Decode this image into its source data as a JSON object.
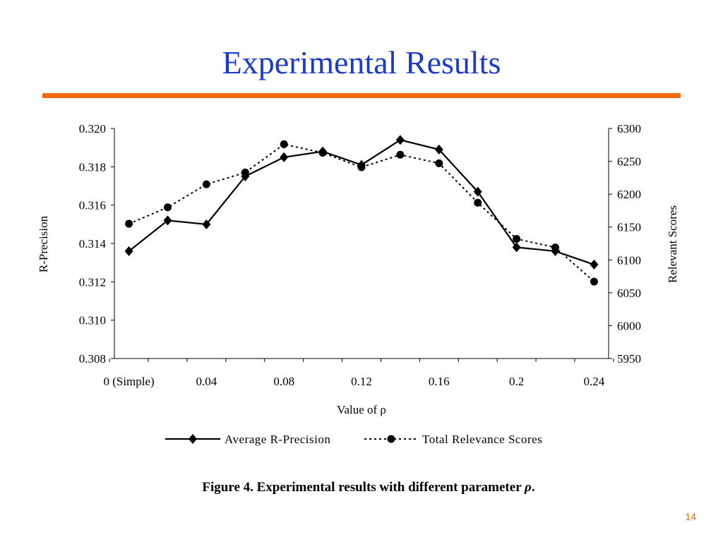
{
  "slide": {
    "title": "Experimental Results",
    "caption_prefix": "Figure 4. Experimental results with different parameter ",
    "caption_symbol": "ρ",
    "caption_suffix": ".",
    "page_number": "14",
    "accent_color": "#f26b0a",
    "title_color": "#1a3acc"
  },
  "chart_data": {
    "type": "line",
    "title": "",
    "xlabel": "Value of ρ",
    "ylabel": "R-Precision",
    "y2label": "Relevant Scores",
    "x": [
      0,
      0.02,
      0.04,
      0.06,
      0.08,
      0.1,
      0.12,
      0.14,
      0.16,
      0.18,
      0.2,
      0.22,
      0.24
    ],
    "xlim": [
      -0.0075,
      0.2475
    ],
    "x_ticks": [
      {
        "value": 0,
        "label": "0 (Simple)"
      },
      {
        "value": 0.04,
        "label": "0.04"
      },
      {
        "value": 0.08,
        "label": "0.08"
      },
      {
        "value": 0.12,
        "label": "0.12"
      },
      {
        "value": 0.16,
        "label": "0.16"
      },
      {
        "value": 0.2,
        "label": "0.2"
      },
      {
        "value": 0.24,
        "label": "0.24"
      }
    ],
    "ylim": [
      0.308,
      0.32
    ],
    "y_ticks": [
      "0.308",
      "0.310",
      "0.312",
      "0.314",
      "0.316",
      "0.318",
      "0.320"
    ],
    "y2lim": [
      5950,
      6300
    ],
    "y2_ticks": [
      "5950",
      "6000",
      "6050",
      "6100",
      "6150",
      "6200",
      "6250",
      "6300"
    ],
    "grid": false,
    "legend_position": "bottom",
    "series": [
      {
        "name": "Average R-Precision",
        "axis": "left",
        "style": "solid",
        "marker": "diamond",
        "values": [
          0.3136,
          0.3152,
          0.315,
          0.3175,
          0.3185,
          0.3188,
          0.3181,
          0.3194,
          0.3189,
          0.3167,
          0.3138,
          0.3136,
          0.3129
        ]
      },
      {
        "name": "Total Relevance Scores",
        "axis": "right",
        "style": "dotted",
        "marker": "circle",
        "values": [
          6155,
          6180,
          6215,
          6233,
          6276,
          6263,
          6241,
          6260,
          6247,
          6187,
          6132,
          6119,
          6067
        ]
      }
    ]
  }
}
